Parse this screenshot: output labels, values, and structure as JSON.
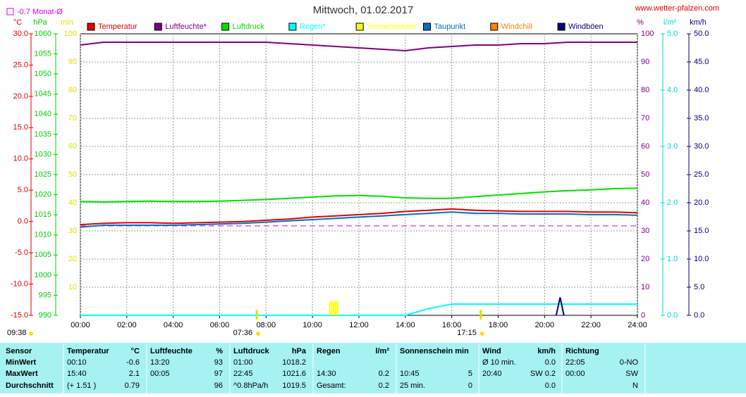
{
  "chart_data": {
    "type": "line",
    "title": "Mittwoch, 01.02.2017",
    "source": "www.wetter-pfalzen.com",
    "reference_line": {
      "value": -0.7,
      "axis": "celsius",
      "label": "-0.7 Monat-Ø",
      "color": "#e000e0"
    },
    "x": [
      0,
      1,
      2,
      3,
      4,
      5,
      6,
      7,
      8,
      9,
      10,
      11,
      12,
      13,
      14,
      15,
      16,
      17,
      18,
      19,
      20,
      21,
      22,
      23,
      24
    ],
    "xlim": [
      0,
      24
    ],
    "xticks": [
      {
        "value": 0,
        "label": "00:00"
      },
      {
        "value": 2,
        "label": "02:00"
      },
      {
        "value": 4,
        "label": "04:00"
      },
      {
        "value": 6,
        "label": "06:00"
      },
      {
        "value": 8,
        "label": "08:00"
      },
      {
        "value": 10,
        "label": "10:00"
      },
      {
        "value": 12,
        "label": "12:00"
      },
      {
        "value": 14,
        "label": "14:00"
      },
      {
        "value": 16,
        "label": "16:00"
      },
      {
        "value": 18,
        "label": "18:00"
      },
      {
        "value": 20,
        "label": "20:00"
      },
      {
        "value": 22,
        "label": "22:00"
      },
      {
        "value": 24,
        "label": "24:00"
      }
    ],
    "grid": true,
    "axes": {
      "celsius": {
        "label": "°C",
        "color": "#e00000",
        "lim": [
          -15,
          30
        ],
        "ticks": [
          {
            "value": -15,
            "label": "-15.0"
          },
          {
            "value": -10,
            "label": "-10.0"
          },
          {
            "value": -5,
            "label": "-5.0"
          },
          {
            "value": 0,
            "label": "0.0"
          },
          {
            "value": 5,
            "label": "5.0"
          },
          {
            "value": 10,
            "label": "10.0"
          },
          {
            "value": 15,
            "label": "15.0"
          },
          {
            "value": 20,
            "label": "20.0"
          },
          {
            "value": 25,
            "label": "25.0"
          },
          {
            "value": 30,
            "label": "30.0"
          }
        ]
      },
      "hpa": {
        "label": "hPa",
        "color": "#00d000",
        "lim": [
          990,
          1060
        ],
        "ticks": [
          990,
          995,
          1000,
          1005,
          1010,
          1015,
          1020,
          1025,
          1030,
          1035,
          1040,
          1045,
          1050,
          1055,
          1060
        ]
      },
      "min": {
        "label": "min",
        "color": "#e0e000",
        "lim": [
          0,
          100
        ],
        "ticks": [
          10,
          20,
          30,
          40,
          50,
          60,
          70,
          80,
          90,
          100
        ]
      },
      "pct": {
        "label": "%",
        "color": "#800080",
        "lim": [
          0,
          100
        ],
        "ticks": [
          0,
          10,
          20,
          30,
          40,
          50,
          60,
          70,
          80,
          90,
          100
        ],
        "grid": true
      },
      "rain": {
        "label": "l/m²",
        "color": "#00d8d8",
        "lim": [
          0,
          5
        ],
        "ticks": [
          {
            "value": 0,
            "label": "0.0"
          },
          {
            "value": 1,
            "label": "1.0"
          },
          {
            "value": 2,
            "label": "2.0"
          },
          {
            "value": 3,
            "label": "3.0"
          },
          {
            "value": 4,
            "label": "4.0"
          },
          {
            "value": 5,
            "label": "5.0"
          }
        ]
      },
      "kmh": {
        "label": "km/h",
        "color": "#000080",
        "lim": [
          0,
          50
        ],
        "ticks": [
          {
            "value": 0,
            "label": "0.0"
          },
          {
            "value": 5,
            "label": "5.0"
          },
          {
            "value": 10,
            "label": "10.0"
          },
          {
            "value": 15,
            "label": "15.0"
          },
          {
            "value": 20,
            "label": "20.0"
          },
          {
            "value": 25,
            "label": "25.0"
          },
          {
            "value": 30,
            "label": "30.0"
          },
          {
            "value": 35,
            "label": "35.0"
          },
          {
            "value": 40,
            "label": "40.0"
          },
          {
            "value": 45,
            "label": "45.0"
          },
          {
            "value": 50,
            "label": "50.0"
          }
        ]
      }
    },
    "series": [
      {
        "name": "Temperatur",
        "color": "#e00000",
        "axis": "celsius",
        "values": [
          -0.5,
          -0.3,
          -0.2,
          -0.2,
          -0.3,
          -0.2,
          -0.1,
          0.0,
          0.2,
          0.4,
          0.7,
          0.9,
          1.1,
          1.3,
          1.6,
          1.8,
          2.0,
          1.8,
          1.7,
          1.6,
          1.6,
          1.6,
          1.5,
          1.5,
          1.4
        ]
      },
      {
        "name": "Luftfeuchte*",
        "color": "#800080",
        "axis": "pct",
        "values": [
          96,
          97,
          97,
          97,
          97,
          97,
          97,
          97,
          97,
          96.5,
          96,
          95.5,
          95,
          94.5,
          94,
          95,
          95.5,
          96,
          96,
          96.5,
          96.5,
          97,
          97,
          97,
          97
        ]
      },
      {
        "name": "Luftdruck",
        "color": "#00e000",
        "axis": "hpa",
        "values": [
          1018.3,
          1018.2,
          1018.3,
          1018.4,
          1018.3,
          1018.3,
          1018.4,
          1018.6,
          1018.8,
          1019.1,
          1019.4,
          1019.7,
          1019.8,
          1019.6,
          1019.2,
          1019.1,
          1019.1,
          1019.5,
          1019.9,
          1020.3,
          1020.7,
          1021.0,
          1021.2,
          1021.5,
          1021.6
        ]
      },
      {
        "name": "Regen*",
        "color": "#00ffff",
        "axis": "rain",
        "values": [
          0,
          0,
          0,
          0,
          0,
          0,
          0,
          0,
          0,
          0,
          0,
          0,
          0,
          0,
          0,
          0.12,
          0.2,
          0.2,
          0.2,
          0.2,
          0.2,
          0.2,
          0.2,
          0.2,
          0.2
        ]
      },
      {
        "name": "Sonnenschein",
        "color": "#ffff00",
        "axis": "min",
        "type": "bar",
        "x": [
          10.75,
          10.83,
          10.92,
          11.0,
          11.08
        ],
        "values": [
          5,
          5,
          5,
          5,
          5
        ]
      },
      {
        "name": "Taupunkt",
        "color": "#0070c0",
        "axis": "celsius",
        "values": [
          -0.9,
          -0.6,
          -0.6,
          -0.6,
          -0.6,
          -0.5,
          -0.4,
          -0.3,
          -0.1,
          0.1,
          0.3,
          0.5,
          0.7,
          0.9,
          1.1,
          1.3,
          1.5,
          1.3,
          1.3,
          1.2,
          1.2,
          1.2,
          1.1,
          1.1,
          1.0
        ]
      },
      {
        "name": "Windchill",
        "color": "#ff8000",
        "axis": "celsius",
        "values": [
          null,
          null,
          null,
          null,
          null,
          null,
          null,
          null,
          null,
          null,
          null,
          null,
          null,
          null,
          null,
          null,
          null,
          null,
          null,
          null,
          null,
          null,
          null,
          null,
          null
        ]
      },
      {
        "name": "Windböen",
        "color": "#000080",
        "axis": "kmh",
        "x": [
          20.5,
          20.67,
          20.83
        ],
        "values": [
          0,
          3.2,
          0
        ]
      }
    ],
    "sun": {
      "daylength": "09:38",
      "sunrise": {
        "value": 7.6,
        "label": "07:36"
      },
      "sunset": {
        "value": 17.25,
        "label": "17:15"
      }
    }
  },
  "table": {
    "header": [
      "Sensor",
      "Temperatur",
      "°C",
      "Luftfeuchte",
      "%",
      "Luftdruck",
      "hPa",
      "Regen",
      "l/m²",
      "Sonnenschein min",
      null,
      "Wind",
      "km/h",
      "Richtung",
      null
    ],
    "rows": [
      [
        "MinWert",
        "00:10",
        "-0.6",
        "13:20",
        "93",
        "01:00",
        "1018.2",
        null,
        null,
        null,
        null,
        "Ø 10 min.",
        "0.0",
        "22:05",
        "0-NO"
      ],
      [
        "MaxWert",
        "15:40",
        "2.1",
        "00:05",
        "97",
        "22:45",
        "1021.6",
        "14:30",
        "0.2",
        "10:45",
        "5",
        "20:40",
        "SW 0.2",
        "00:00",
        "SW"
      ],
      [
        "Durchschnitt",
        "(+ 1.51 )",
        "0.79",
        null,
        "96",
        "^0.8hPa/h",
        "1019.5",
        "Gesamt:",
        "0.2",
        "25 min.",
        "0",
        null,
        "0.0",
        null,
        "N"
      ]
    ]
  }
}
